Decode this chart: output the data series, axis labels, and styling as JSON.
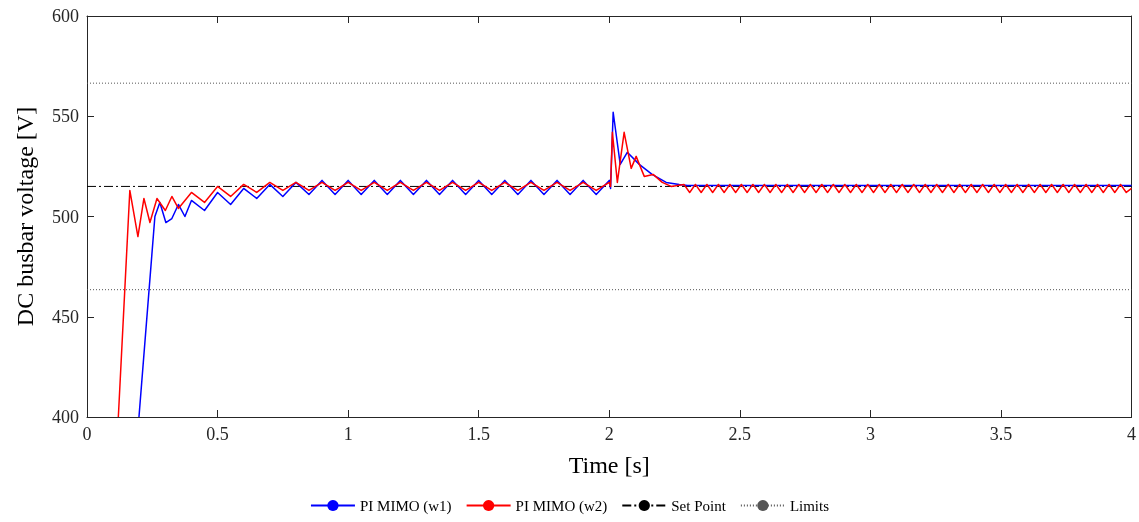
{
  "chart_data": {
    "type": "line",
    "xlabel": "Time [s]",
    "ylabel": "DC busbar voltage [V]",
    "xlim": [
      0,
      4
    ],
    "xticks": [
      0,
      0.5,
      1,
      1.5,
      2,
      2.5,
      3,
      3.5,
      4
    ],
    "ylim": [
      400,
      600
    ],
    "yticks": [
      400,
      450,
      500,
      550,
      600
    ],
    "grid": false,
    "legend": "bottom",
    "marker": "none",
    "series": [
      {
        "name": "PI MIMO (w1)",
        "color": "#0000ff",
        "x": [
          0.199,
          0.26,
          0.279,
          0.302,
          0.325,
          0.35,
          0.375,
          0.4,
          0.45,
          0.5,
          0.55,
          0.6,
          0.65,
          0.7,
          0.75,
          0.8,
          0.85,
          0.9,
          0.95,
          1.0,
          1.05,
          1.1,
          1.15,
          1.2,
          1.25,
          1.3,
          1.35,
          1.4,
          1.45,
          1.5,
          1.55,
          1.6,
          1.65,
          1.7,
          1.75,
          1.8,
          1.85,
          1.9,
          1.95,
          2.0,
          2.005,
          2.015,
          2.042,
          2.069,
          2.115,
          2.164,
          2.218,
          2.268,
          2.3,
          4.0
        ],
        "values": [
          400,
          500,
          507,
          497,
          499,
          506,
          500,
          508,
          503,
          512,
          506,
          514,
          509,
          516,
          510,
          517,
          511,
          518,
          511,
          518,
          511,
          518,
          511,
          518,
          511,
          518,
          511,
          518,
          511,
          518,
          511,
          518,
          511,
          518,
          511,
          518,
          511,
          518,
          511,
          518,
          514,
          552,
          526,
          532,
          526,
          521,
          517,
          516,
          515.5,
          515.5
        ]
      },
      {
        "name": "PI MIMO (w2)",
        "color": "#ff0000",
        "x": [
          0.12,
          0.164,
          0.195,
          0.218,
          0.241,
          0.268,
          0.3,
          0.325,
          0.35,
          0.4,
          0.45,
          0.5,
          0.55,
          0.6,
          0.65,
          0.7,
          0.75,
          0.8,
          0.85,
          0.9,
          0.95,
          1.0,
          1.05,
          1.1,
          1.15,
          1.2,
          1.25,
          1.3,
          1.35,
          1.4,
          1.45,
          1.5,
          1.55,
          1.6,
          1.65,
          1.7,
          1.75,
          1.8,
          1.85,
          1.9,
          1.95,
          2.0,
          2.005,
          2.012,
          2.031,
          2.057,
          2.084,
          2.103,
          2.134,
          2.168,
          2.203,
          2.237,
          2.286,
          2.308,
          2.33,
          2.352,
          2.374,
          2.396,
          2.418,
          2.44,
          2.462,
          2.484,
          2.506,
          2.528,
          2.55,
          2.572,
          2.594,
          2.616,
          2.638,
          2.66,
          2.682,
          2.704,
          2.726,
          2.748,
          2.77,
          2.792,
          2.814,
          2.836,
          2.858,
          2.88,
          2.902,
          2.924,
          2.946,
          2.968,
          2.99,
          3.012,
          3.034,
          3.056,
          3.078,
          3.1,
          3.122,
          3.144,
          3.166,
          3.188,
          3.21,
          3.232,
          3.254,
          3.276,
          3.298,
          3.32,
          3.342,
          3.364,
          3.386,
          3.408,
          3.43,
          3.452,
          3.474,
          3.496,
          3.518,
          3.54,
          3.562,
          3.584,
          3.606,
          3.628,
          3.65,
          3.672,
          3.694,
          3.716,
          3.738,
          3.76,
          3.782,
          3.804,
          3.826,
          3.848,
          3.87,
          3.892,
          3.914,
          3.936,
          3.958,
          3.98,
          4.0
        ],
        "values": [
          400,
          513,
          490,
          509,
          497,
          509,
          503,
          510,
          504,
          512,
          507,
          515,
          510,
          516,
          512,
          517,
          513,
          517,
          513,
          517,
          513,
          517,
          513,
          517,
          513,
          517,
          513,
          517,
          513,
          517,
          513,
          517,
          513,
          517,
          513,
          517,
          513,
          517,
          513,
          517,
          513,
          517,
          515,
          542,
          517,
          542,
          524,
          530,
          520,
          521,
          517,
          515,
          516,
          512,
          516,
          512,
          516,
          512,
          516,
          512,
          516,
          512,
          516,
          512,
          516,
          512,
          516,
          512,
          516,
          512,
          516,
          512,
          516,
          512,
          516,
          512,
          516,
          512,
          516,
          512,
          516,
          512,
          516,
          512,
          516,
          512,
          516,
          512,
          516,
          512,
          516,
          512,
          516,
          512,
          516,
          512,
          516,
          512,
          516,
          512,
          516,
          512,
          516,
          512,
          516,
          512,
          516,
          512,
          516,
          512,
          516,
          512,
          516,
          512,
          516,
          512,
          516,
          512,
          516,
          512,
          516,
          512,
          516,
          512,
          516,
          512,
          516,
          512,
          516,
          512,
          514
        ]
      }
    ],
    "ref_lines": [
      {
        "axis": "y",
        "value": 515,
        "label": "Set Point",
        "color": "#000000",
        "line_style": "dashdot"
      },
      {
        "axis": "y",
        "value": 566.5,
        "label": "Limits",
        "color": "#555555",
        "line_style": "dotted"
      },
      {
        "axis": "y",
        "value": 463.5,
        "color": "#555555",
        "line_style": "dotted"
      }
    ]
  }
}
